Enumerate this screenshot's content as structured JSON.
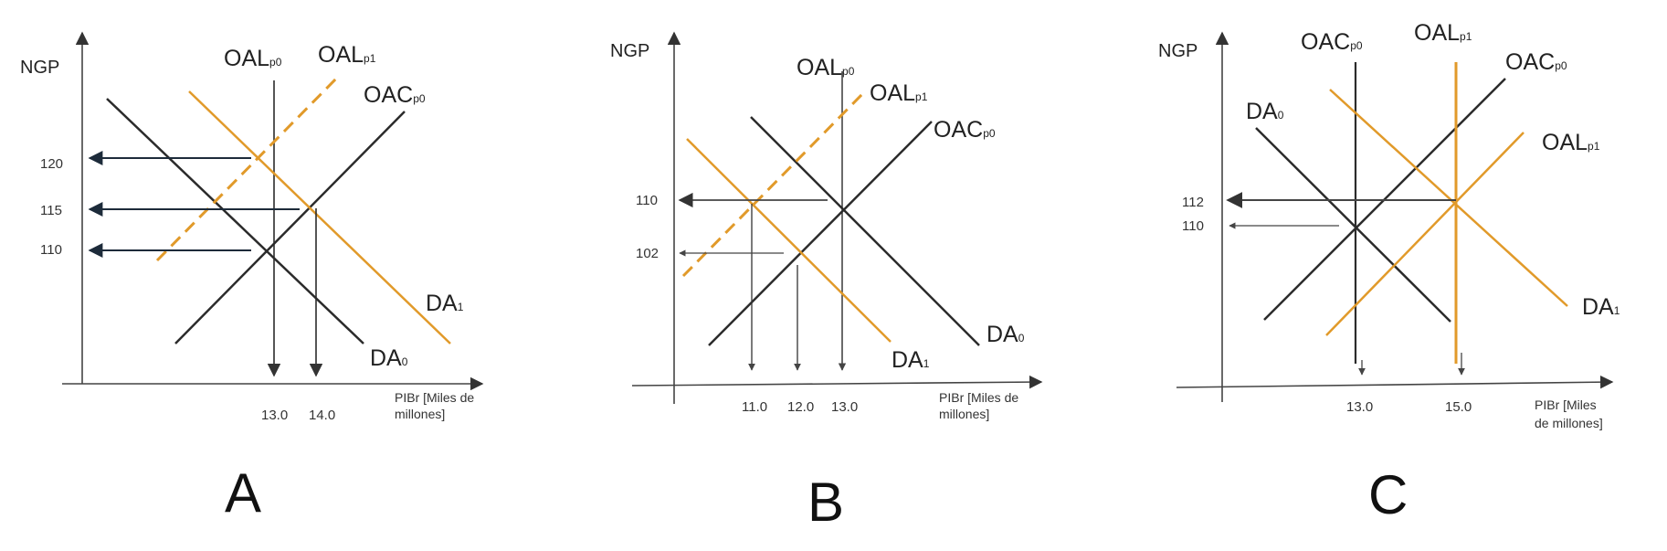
{
  "colors": {
    "black": "#222222",
    "orange": "#E19A2A",
    "navy": "#1d2b3a",
    "grey": "#4a4a4a"
  },
  "panels": [
    {
      "id": "A",
      "panel_label": "A",
      "y_axis_label": "NGP",
      "x_axis_label_line1": "PIBr [Miles de",
      "x_axis_label_line2": "millones]",
      "y_ticks": [
        "120",
        "115",
        "110"
      ],
      "x_ticks": [
        "13.0",
        "14.0"
      ],
      "curves": {
        "oal0": {
          "base": "OAL",
          "sub": "p0"
        },
        "oal1": {
          "base": "OAL",
          "sub": "p1"
        },
        "oac0": {
          "base": "OAC",
          "sub": "p0"
        },
        "da0": {
          "base": "DA",
          "sub": "0"
        },
        "da1": {
          "base": "DA",
          "sub": "1"
        }
      }
    },
    {
      "id": "B",
      "panel_label": "B",
      "y_axis_label": "NGP",
      "x_axis_label_line1": "PIBr [Miles de",
      "x_axis_label_line2": "millones]",
      "y_ticks": [
        "110",
        "102"
      ],
      "x_ticks": [
        "11.0",
        "12.0",
        "13.0"
      ],
      "curves": {
        "oal0": {
          "base": "OAL",
          "sub": "p0"
        },
        "oal1": {
          "base": "OAL",
          "sub": "p1"
        },
        "oac0": {
          "base": "OAC",
          "sub": "p0"
        },
        "da0": {
          "base": "DA",
          "sub": "0"
        },
        "da1": {
          "base": "DA",
          "sub": "1"
        }
      }
    },
    {
      "id": "C",
      "panel_label": "C",
      "y_axis_label": "NGP",
      "x_axis_label_line1": "PIBr [Miles",
      "x_axis_label_line2": "de millones]",
      "y_ticks": [
        "112",
        "110"
      ],
      "x_ticks": [
        "13.0",
        "15.0"
      ],
      "curves": {
        "oac0_left": {
          "base": "OAC",
          "sub": "p0"
        },
        "oal1_top": {
          "base": "OAL",
          "sub": "p1"
        },
        "oac0_right": {
          "base": "OAC",
          "sub": "p0"
        },
        "oal1_right": {
          "base": "OAL",
          "sub": "p1"
        },
        "da0": {
          "base": "DA",
          "sub": "0"
        },
        "da1": {
          "base": "DA",
          "sub": "1"
        }
      }
    }
  ]
}
